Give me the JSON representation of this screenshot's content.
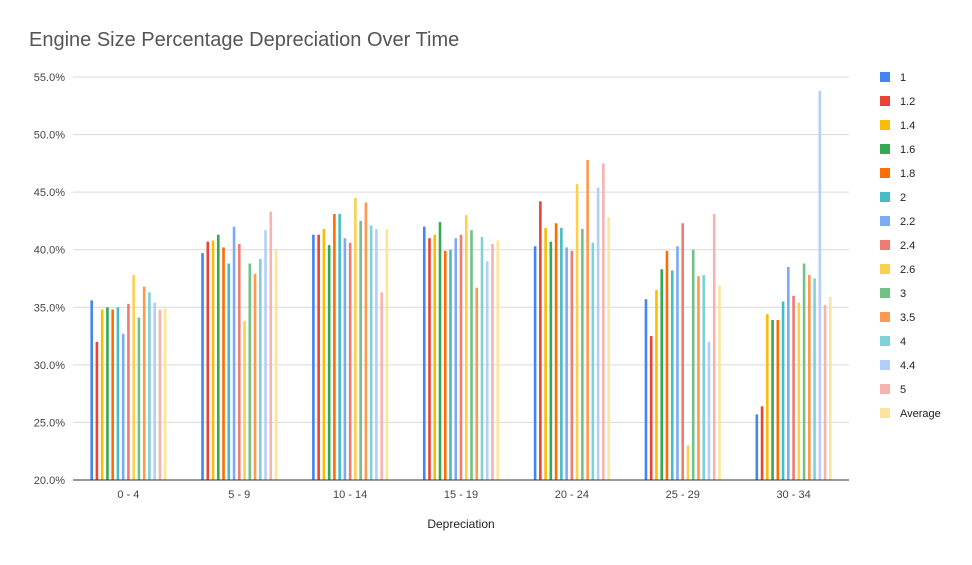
{
  "chart_data": {
    "type": "bar",
    "title": "Engine Size Percentage Depreciation Over Time",
    "xlabel": "Depreciation",
    "ylabel": "",
    "ylim": [
      20,
      55
    ],
    "yticks": [
      "20.0%",
      "25.0%",
      "30.0%",
      "35.0%",
      "40.0%",
      "45.0%",
      "50.0%",
      "55.0%"
    ],
    "grid": true,
    "legend_position": "right",
    "categories": [
      "0 - 4",
      "5 - 9",
      "10 - 14",
      "15 - 19",
      "20 - 24",
      "25 - 29",
      "30 - 34"
    ],
    "series": [
      {
        "name": "1",
        "color": "#4285f4",
        "values": [
          35.6,
          39.7,
          41.3,
          42.0,
          40.3,
          35.7,
          25.7
        ]
      },
      {
        "name": "1.2",
        "color": "#ea4335",
        "values": [
          32.0,
          40.7,
          41.3,
          41.0,
          44.2,
          32.5,
          26.4
        ]
      },
      {
        "name": "1.4",
        "color": "#fbbc04",
        "values": [
          34.8,
          40.8,
          41.8,
          41.3,
          41.9,
          36.5,
          34.4
        ]
      },
      {
        "name": "1.6",
        "color": "#34a853",
        "values": [
          35.0,
          41.3,
          40.4,
          42.4,
          40.7,
          38.3,
          33.9
        ]
      },
      {
        "name": "1.8",
        "color": "#ff6d01",
        "values": [
          34.8,
          40.2,
          43.1,
          39.9,
          42.3,
          39.9,
          33.9
        ]
      },
      {
        "name": "2",
        "color": "#46bdc6",
        "values": [
          35.0,
          38.8,
          43.1,
          40.0,
          41.9,
          38.2,
          35.5
        ]
      },
      {
        "name": "2.2",
        "color": "#7baaf7",
        "values": [
          32.7,
          42.0,
          41.0,
          41.0,
          40.2,
          40.3,
          38.5
        ]
      },
      {
        "name": "2.4",
        "color": "#f07b72",
        "values": [
          35.3,
          40.5,
          40.6,
          41.3,
          39.9,
          42.3,
          36.0
        ]
      },
      {
        "name": "2.6",
        "color": "#fcd04f",
        "values": [
          37.8,
          33.8,
          44.5,
          43.0,
          45.7,
          23.0,
          35.4
        ]
      },
      {
        "name": "3",
        "color": "#71c287",
        "values": [
          34.1,
          38.8,
          42.5,
          41.7,
          41.8,
          40.0,
          38.8
        ]
      },
      {
        "name": "3.5",
        "color": "#ff994d",
        "values": [
          36.8,
          37.9,
          44.1,
          36.7,
          47.8,
          37.7,
          37.8
        ]
      },
      {
        "name": "4",
        "color": "#7ed1d7",
        "values": [
          36.3,
          39.2,
          42.1,
          41.1,
          40.6,
          37.8,
          37.5
        ]
      },
      {
        "name": "4.4",
        "color": "#b3cefb",
        "values": [
          35.4,
          41.7,
          41.8,
          39.0,
          45.4,
          32.0,
          53.8
        ]
      },
      {
        "name": "5",
        "color": "#f7b4ae",
        "values": [
          34.8,
          43.3,
          36.3,
          40.5,
          47.5,
          43.1,
          35.2
        ]
      },
      {
        "name": "Average",
        "color": "#fde49b",
        "values": [
          34.9,
          40.0,
          41.8,
          40.8,
          42.8,
          36.9,
          35.9
        ]
      }
    ]
  }
}
